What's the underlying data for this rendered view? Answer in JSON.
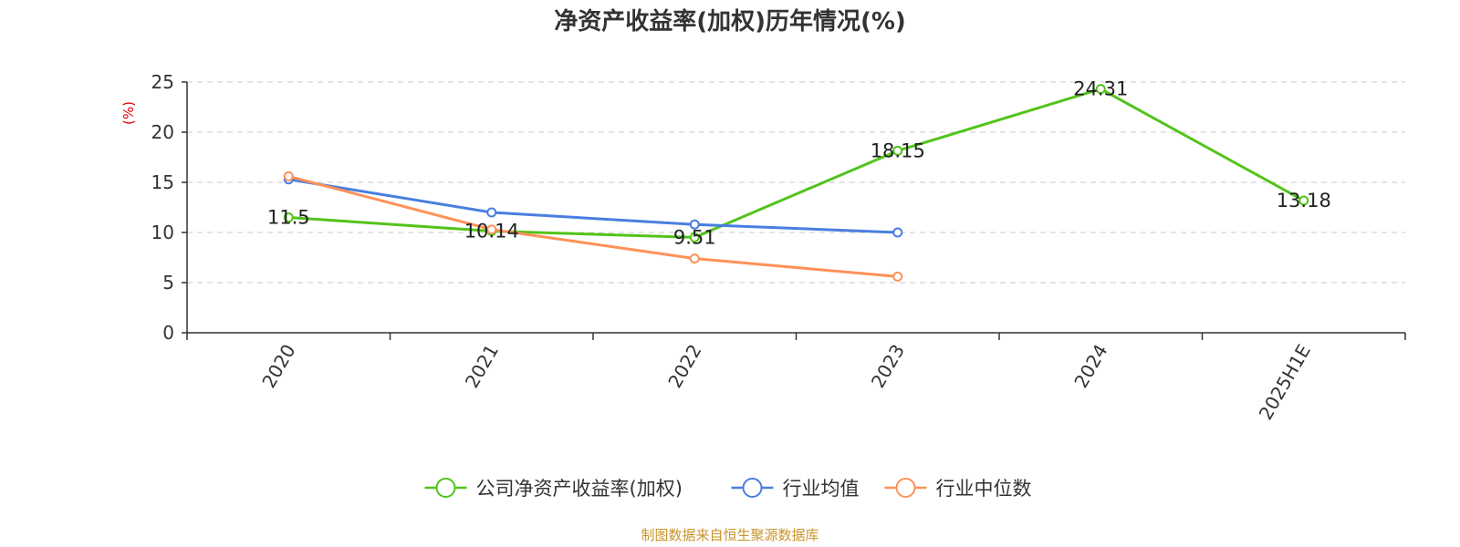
{
  "chart_data": {
    "type": "line",
    "title": "净资产收益率(加权)历年情况(%)",
    "ylabel": "(%)",
    "xlabel": "",
    "categories": [
      "2020",
      "2021",
      "2022",
      "2023",
      "2024",
      "2025H1E"
    ],
    "ylim": [
      0,
      25
    ],
    "yticks": [
      0,
      5,
      10,
      15,
      20,
      25
    ],
    "grid": true,
    "legend_position": "bottom",
    "series": [
      {
        "name": "公司净资产收益率(加权)",
        "color": "#52c41a",
        "values": [
          11.5,
          10.14,
          9.51,
          18.15,
          24.31,
          13.18
        ],
        "labels": [
          "11.5",
          "10.14",
          "9.51",
          "18.15",
          "24.31",
          "13.18"
        ]
      },
      {
        "name": "行业均值",
        "color": "#4a7ee0",
        "values": [
          15.3,
          12.0,
          10.8,
          10.0,
          null,
          null
        ]
      },
      {
        "name": "行业中位数",
        "color": "#ff9159",
        "values": [
          15.6,
          10.3,
          7.4,
          5.6,
          null,
          null
        ]
      }
    ],
    "ylabel_color": "#e00000"
  },
  "source": {
    "text": "制图数据来自恒生聚源数据库",
    "color": "#c8942a"
  }
}
